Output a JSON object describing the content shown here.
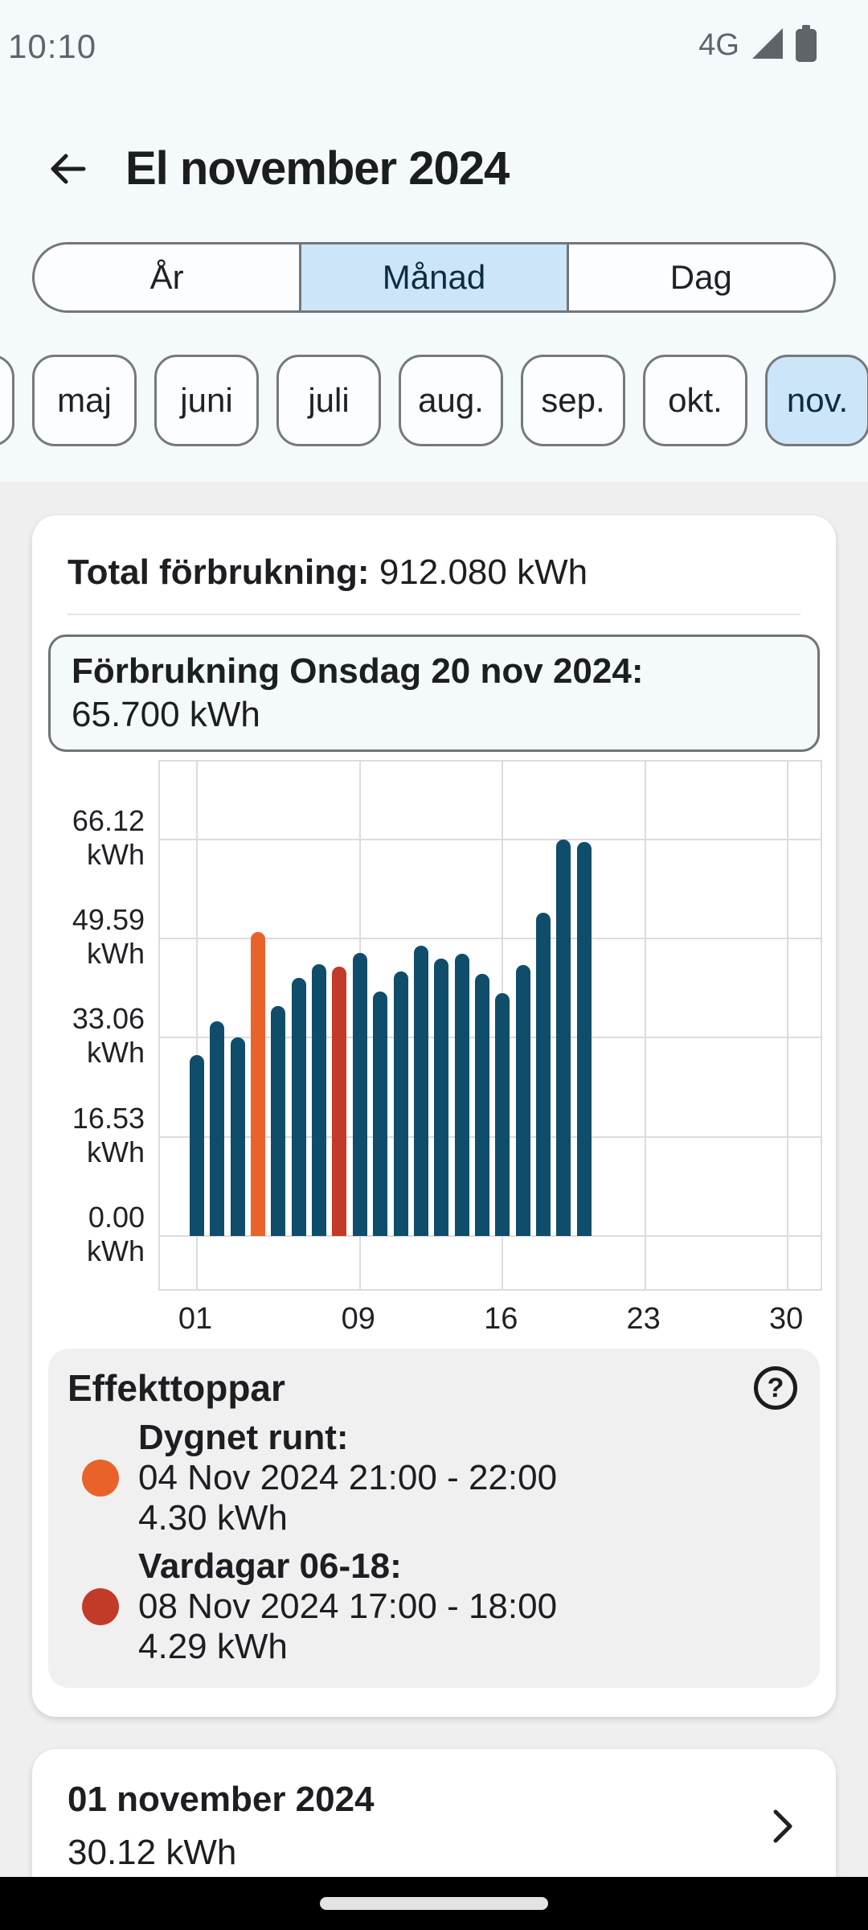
{
  "status_bar": {
    "time": "10:10",
    "network": "4G"
  },
  "header": {
    "title": "El november 2024"
  },
  "period_tabs": {
    "options": [
      "År",
      "Månad",
      "Dag"
    ],
    "selected": "Månad"
  },
  "month_chips": {
    "items": [
      "maj",
      "juni",
      "juli",
      "aug.",
      "sep.",
      "okt.",
      "nov."
    ],
    "selected": "nov."
  },
  "summary": {
    "total_label": "Total förbrukning:",
    "total_value": "912.080 kWh"
  },
  "selected_day_info": {
    "title": "Förbrukning Onsdag 20 nov 2024:",
    "value": "65.700 kWh"
  },
  "chart_data": {
    "type": "bar",
    "title": "Daily electricity consumption November 2024",
    "days": [
      1,
      2,
      3,
      4,
      5,
      6,
      7,
      8,
      9,
      10,
      11,
      12,
      13,
      14,
      15,
      16,
      17,
      18,
      19,
      20
    ],
    "values": [
      30.1,
      35.8,
      33.1,
      50.7,
      38.3,
      43.0,
      45.3,
      44.9,
      47.2,
      40.7,
      44.1,
      48.4,
      46.3,
      47.1,
      43.7,
      40.5,
      45.2,
      53.9,
      66.1,
      65.7
    ],
    "colors": {
      "default": "#0f4d6b",
      "4": "#e9622a",
      "8": "#c23a28"
    },
    "y_ticks": [
      {
        "value": 66.12,
        "label": "66.12 kWh"
      },
      {
        "value": 49.59,
        "label": "49.59 kWh"
      },
      {
        "value": 33.06,
        "label": "33.06 kWh"
      },
      {
        "value": 16.53,
        "label": "16.53 kWh"
      },
      {
        "value": 0,
        "label": "0.00 kWh"
      }
    ],
    "x_ticks": [
      {
        "day": 1,
        "label": "01"
      },
      {
        "day": 9,
        "label": "09"
      },
      {
        "day": 16,
        "label": "16"
      },
      {
        "day": 23,
        "label": "23"
      },
      {
        "day": 30,
        "label": "30"
      }
    ],
    "xlim_days": [
      1,
      30
    ],
    "ylim": [
      0,
      88
    ],
    "grid": true,
    "legend_position": "none"
  },
  "peaks": {
    "title": "Effekttoppar",
    "help_label": "?",
    "entries": [
      {
        "label": "Dygnet runt:",
        "date": "04 Nov 2024 21:00 - 22:00",
        "value": "4.30 kWh",
        "color": "#e9622a"
      },
      {
        "label": "Vardagar 06-18:",
        "date": "08 Nov 2024 17:00 - 18:00",
        "value": "4.29 kWh",
        "color": "#c23a28"
      }
    ]
  },
  "day_list": [
    {
      "date": "01 november 2024",
      "value": "30.12 kWh"
    }
  ],
  "colors": {
    "top_background": "#f4f9fb",
    "content_background": "#efeff0",
    "selected_blue": "#cde5f8",
    "bar_blue": "#0f4d6b",
    "peak_orange": "#e9622a",
    "peak_red": "#c23a28"
  }
}
